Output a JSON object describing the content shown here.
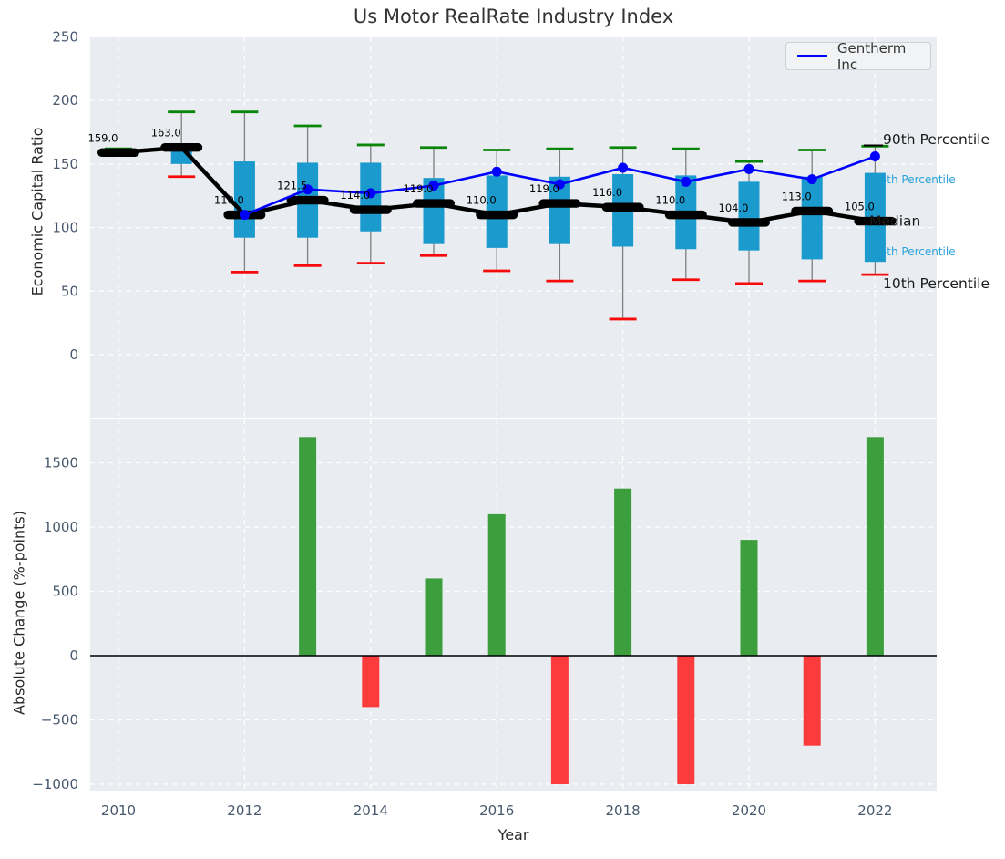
{
  "title": "Us Motor RealRate Industry Index",
  "legend": {
    "label": "Gentherm Inc"
  },
  "x_axis": {
    "label": "Year",
    "ticks": [
      2010,
      2012,
      2014,
      2016,
      2018,
      2020,
      2022
    ]
  },
  "annotations": {
    "p90": "90th Percentile",
    "p75": "75th Percentile",
    "median": "Median",
    "p25": "25th Percentile",
    "p10": "10th Percentile"
  },
  "colors": {
    "plot_bg": "#e9edf1",
    "grid": "#ffffff",
    "box": "#1b9acd",
    "whisker": "#7f7f7f",
    "cap_high": "#0a850a",
    "cap_low": "#f70a0a",
    "median": "#000000",
    "company_line": "#0000ff",
    "bar_up": "#3c9e3c",
    "bar_down": "#fc3c3c",
    "annotation_cyan": "#2aa2d8",
    "annotation_dark": "#1a1a1a",
    "tick_label": "#47586d",
    "value_label": "#000000"
  },
  "chart_data": [
    {
      "type": "boxwhisker_line",
      "ylabel": "Economic Capital Ratio",
      "yticks": [
        0,
        50,
        100,
        150,
        200,
        250
      ],
      "ylim": [
        -50,
        250
      ],
      "grid": true,
      "years": [
        2010,
        2011,
        2012,
        2013,
        2014,
        2015,
        2016,
        2017,
        2018,
        2019,
        2020,
        2021,
        2022
      ],
      "median": [
        159,
        163,
        110,
        121.5,
        114,
        119,
        110,
        119,
        116,
        110,
        104,
        113,
        105
      ],
      "median_labels": [
        "159.0",
        "163.0",
        "110.0",
        "121.5",
        "114.0",
        "119.0",
        "110.0",
        "119.0",
        "116.0",
        "110.0",
        "104.0",
        "113.0",
        "105.0"
      ],
      "p90": [
        162,
        191,
        191,
        180,
        165,
        163,
        161,
        162,
        163,
        162,
        152,
        161,
        164
      ],
      "p75": [
        null,
        163,
        152,
        151,
        151,
        139,
        141,
        140,
        142,
        141,
        136,
        140,
        143
      ],
      "p25": [
        null,
        150,
        92,
        92,
        97,
        87,
        84,
        87,
        85,
        83,
        82,
        75,
        73
      ],
      "p10": [
        null,
        140,
        65,
        70,
        72,
        78,
        66,
        58,
        28,
        59,
        56,
        58,
        63
      ],
      "series": [
        {
          "name": "Gentherm Inc",
          "years": [
            2012,
            2013,
            2014,
            2015,
            2016,
            2017,
            2018,
            2019,
            2020,
            2021,
            2022
          ],
          "values": [
            110,
            130,
            127,
            133,
            144,
            134,
            147,
            136,
            146,
            138,
            156
          ]
        }
      ]
    },
    {
      "type": "bar",
      "ylabel": "Absolute Change (%-points)",
      "yticks": [
        -1000,
        -500,
        0,
        500,
        1000,
        1500
      ],
      "grid": true,
      "years": [
        2013,
        2014,
        2015,
        2016,
        2017,
        2018,
        2019,
        2020,
        2021,
        2022
      ],
      "values": [
        1700,
        -400,
        600,
        1100,
        -1000,
        1300,
        -1000,
        900,
        -700,
        1700
      ]
    }
  ]
}
